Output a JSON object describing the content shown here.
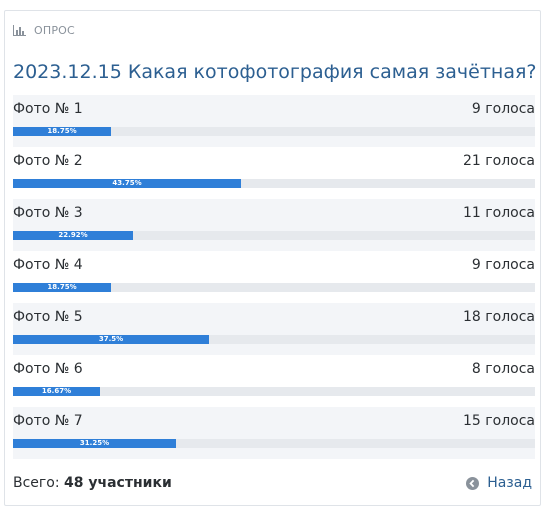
{
  "header": {
    "label": "ОПРОС",
    "icon": "bar-chart-icon"
  },
  "title": "2023.12.15 Какая котофотография самая зачётная?",
  "options": [
    {
      "label": "Фото № 1",
      "votes": "9 голоса",
      "percent": "18.75%",
      "fraction": 0.1875
    },
    {
      "label": "Фото № 2",
      "votes": "21 голоса",
      "percent": "43.75%",
      "fraction": 0.4375
    },
    {
      "label": "Фото № 3",
      "votes": "11 голоса",
      "percent": "22.92%",
      "fraction": 0.2292
    },
    {
      "label": "Фото № 4",
      "votes": "9 голоса",
      "percent": "18.75%",
      "fraction": 0.1875
    },
    {
      "label": "Фото № 5",
      "votes": "18 голоса",
      "percent": "37.5%",
      "fraction": 0.375
    },
    {
      "label": "Фото № 6",
      "votes": "8 голоса",
      "percent": "16.67%",
      "fraction": 0.1667
    },
    {
      "label": "Фото № 7",
      "votes": "15 голоса",
      "percent": "31.25%",
      "fraction": 0.3125
    }
  ],
  "footer": {
    "total_label": "Всего:",
    "total_value": "48 участники",
    "back_label": "Назад",
    "back_icon": "arrow-left-circle-icon"
  },
  "colors": {
    "bar": "#2f7fd8",
    "track": "#e6e9ed",
    "title": "#2c5f91",
    "accent_link": "#2c5f91"
  }
}
